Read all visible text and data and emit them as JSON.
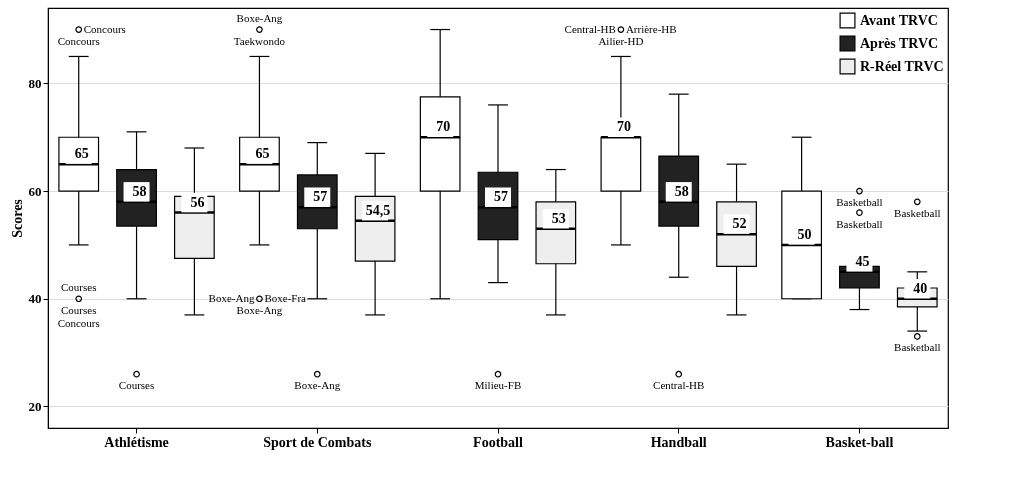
{
  "chart_data": {
    "type": "box",
    "ylabel": "Scores",
    "categories": [
      "Athlétisme",
      "Sport de Combats",
      "Football",
      "Handball",
      "Basket-ball"
    ],
    "ylim": [
      16,
      94
    ],
    "yticks": [
      20,
      40,
      60,
      80
    ],
    "grid": "y",
    "legend": "top right",
    "series": [
      {
        "name": "Avant TRVC",
        "color": "#ffffff",
        "value_labels": [
          "65",
          "65",
          "70",
          "70",
          "50"
        ],
        "boxes": [
          {
            "low": 50,
            "q1": 60,
            "median": 65,
            "q3": 70,
            "high": 85,
            "outliers": [
              90,
              40
            ]
          },
          {
            "low": 50,
            "q1": 60,
            "median": 65,
            "q3": 70,
            "high": 85,
            "outliers": [
              90,
              40
            ]
          },
          {
            "low": 40,
            "q1": 60,
            "median": 70,
            "q3": 77.5,
            "high": 90
          },
          {
            "low": 50,
            "q1": 60,
            "median": 70,
            "q3": 70,
            "high": 85,
            "outliers": [
              90
            ]
          },
          {
            "low": 40,
            "q1": 40,
            "median": 50,
            "q3": 60,
            "high": 70
          }
        ]
      },
      {
        "name": "Après TRVC",
        "color": "#222222",
        "value_labels": [
          "58",
          "57",
          "57",
          "58",
          "45"
        ],
        "boxes": [
          {
            "low": 40,
            "q1": 53.5,
            "median": 58,
            "q3": 64,
            "high": 71,
            "outliers": [
              26
            ]
          },
          {
            "low": 40,
            "q1": 53,
            "median": 57,
            "q3": 63,
            "high": 69,
            "outliers": [
              26
            ]
          },
          {
            "low": 43,
            "q1": 51,
            "median": 57,
            "q3": 63.5,
            "high": 76,
            "outliers": [
              26
            ]
          },
          {
            "low": 44,
            "q1": 53.5,
            "median": 58,
            "q3": 66.5,
            "high": 78,
            "outliers": [
              26
            ]
          },
          {
            "low": 38,
            "q1": 42,
            "median": 45,
            "q3": 46,
            "high": 46,
            "outliers": [
              60,
              56
            ]
          }
        ]
      },
      {
        "name": "R-Réel TRVC",
        "color": "#eeeeee",
        "value_labels": [
          "56",
          "54,5",
          "53",
          "52",
          "40"
        ],
        "boxes": [
          {
            "low": 37,
            "q1": 47.5,
            "median": 56,
            "q3": 59,
            "high": 68
          },
          {
            "low": 37,
            "q1": 47,
            "median": 54.5,
            "q3": 59,
            "high": 67
          },
          {
            "low": 37,
            "q1": 46.5,
            "median": 53,
            "q3": 58,
            "high": 64
          },
          {
            "low": 37,
            "q1": 46,
            "median": 52,
            "q3": 58,
            "high": 65
          },
          {
            "low": 34,
            "q1": 38.5,
            "median": 40,
            "q3": 42,
            "high": 45,
            "outliers": [
              58,
              33
            ]
          }
        ]
      }
    ],
    "annotations": [
      "Concours",
      "Concours",
      "Courses",
      "Courses",
      "Concours",
      "Courses",
      "Boxe-Ang",
      "Taekwondo",
      "Boxe-Ang",
      "Boxe-Fra",
      "Boxe-Ang",
      "Boxe-Ang",
      "Milieu-FB",
      "Central-HB",
      "Arrière-HB",
      "Ailier-HD",
      "Central-HB",
      "Basketball",
      "Basketball",
      "Basketball",
      "Basketball"
    ]
  }
}
